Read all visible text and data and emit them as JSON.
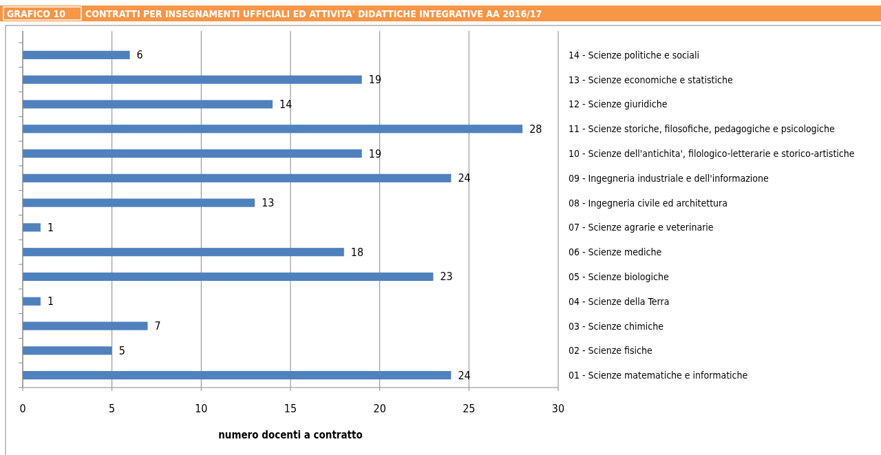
{
  "chart_data": {
    "type": "bar",
    "orientation": "horizontal",
    "title": "GRAFICO 10",
    "subtitle": "CONTRATTI PER INSEGNAMENTI UFFICIALI ED ATTIVITA' DIDATTICHE INTEGRATIVE AA 2016/17",
    "xlabel": "numero docenti a contratto",
    "categories": [
      "14 - Scienze politiche e sociali",
      "13 - Scienze economiche e statistiche",
      "12 - Scienze giuridiche",
      "11 - Scienze storiche, filosofiche, pedagogiche e psicologiche",
      "10 - Scienze dell'antichita', filologico-letterarie e storico-artistiche",
      "09 - Ingegneria industriale e dell'informazione",
      "08 - Ingegneria civile ed architettura",
      "07 - Scienze agrarie e veterinarie",
      "06 - Scienze mediche",
      "05 - Scienze biologiche",
      "04 - Scienze della Terra",
      "03 - Scienze chimiche",
      "02 - Scienze fisiche",
      "01 - Scienze matematiche e informatiche"
    ],
    "values": [
      6,
      19,
      14,
      28,
      19,
      24,
      13,
      1,
      18,
      23,
      1,
      7,
      5,
      24
    ],
    "color": "#4f81bd",
    "xlim": [
      0,
      30
    ],
    "xticks": [
      0,
      5,
      10,
      15,
      20,
      25,
      30
    ],
    "grid": "x",
    "data_labels": true
  }
}
